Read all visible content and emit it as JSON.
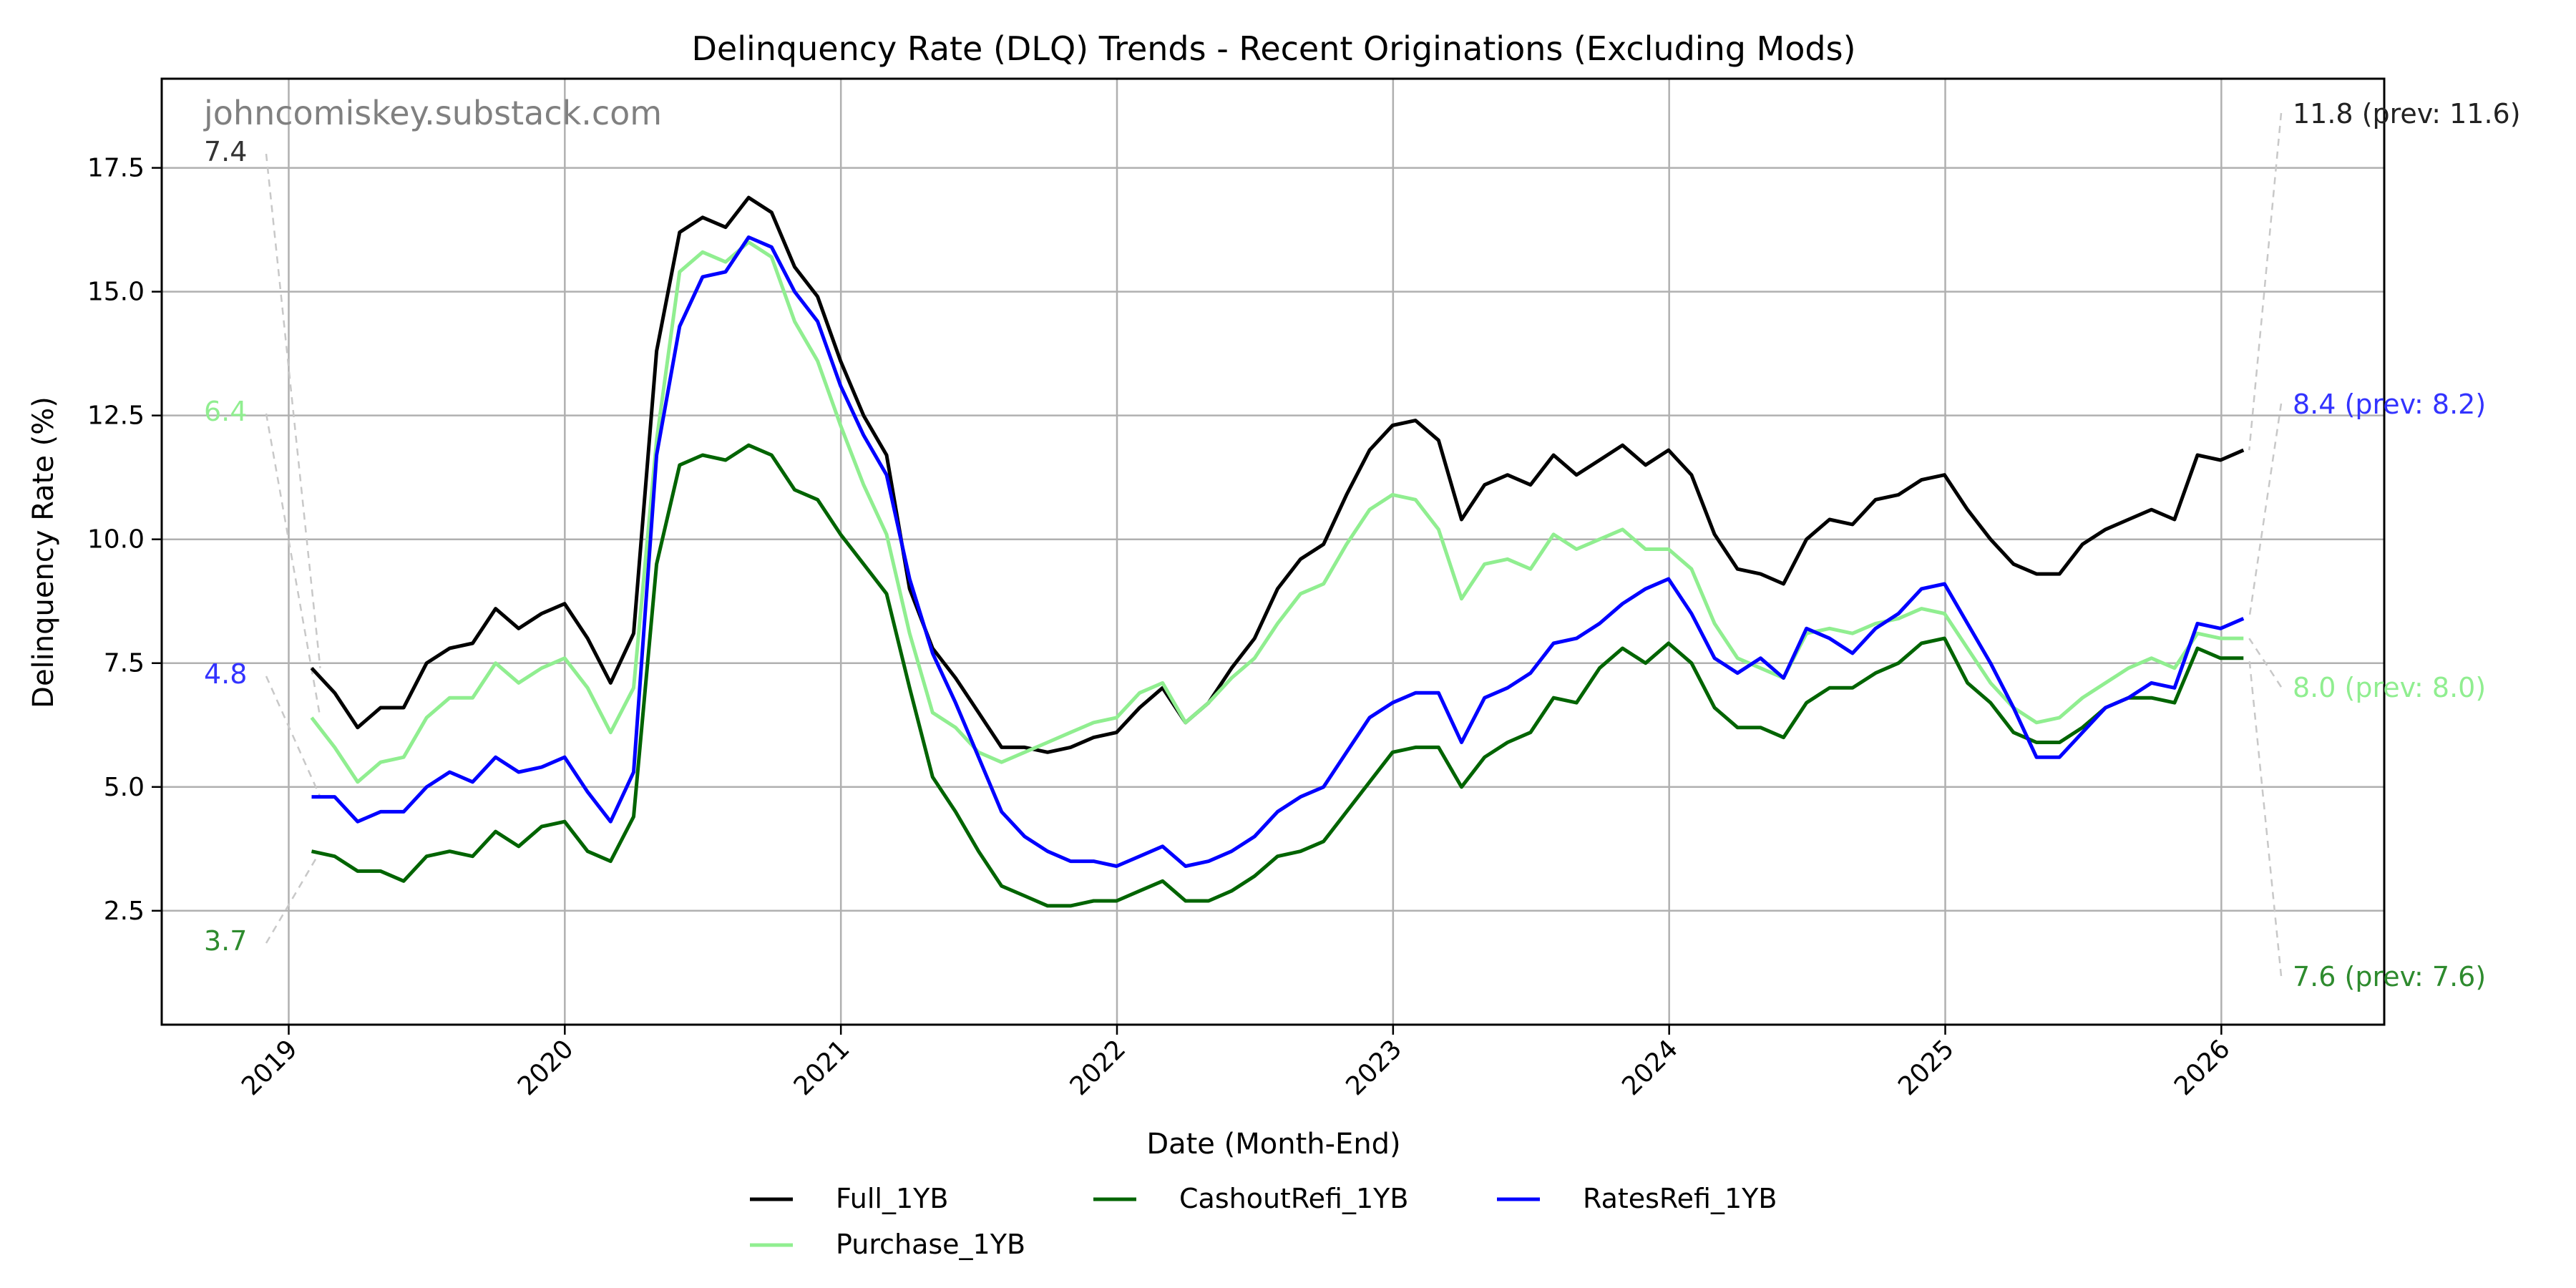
{
  "chart_data": {
    "type": "line",
    "title": "Delinquency Rate (DLQ) Trends - Recent Originations (Excluding Mods)",
    "xlabel": "Date (Month-End)",
    "ylabel": "Delinquency Rate (%)",
    "watermark": "johncomiskey.substack.com",
    "grid": true,
    "legend_position": "bottom-center",
    "ylim": [
      0.2,
      19.3
    ],
    "yticks": [
      2.5,
      5.0,
      7.5,
      10.0,
      12.5,
      15.0,
      17.5
    ],
    "ytick_labels": [
      "2.5",
      "5.0",
      "7.5",
      "10.0",
      "12.5",
      "15.0",
      "17.5"
    ],
    "xlim": [
      2018.54,
      2026.59
    ],
    "xticks": [
      2019,
      2020,
      2021,
      2022,
      2023,
      2024,
      2025,
      2026
    ],
    "xtick_labels": [
      "2019",
      "2020",
      "2021",
      "2022",
      "2023",
      "2024",
      "2025",
      "2026"
    ],
    "x_start": 2019.083,
    "x_step": 0.0833,
    "series": [
      {
        "name": "Full_1YB",
        "color": "#000000",
        "values": [
          7.4,
          6.9,
          6.2,
          6.6,
          6.6,
          7.5,
          7.8,
          7.9,
          8.6,
          8.2,
          8.5,
          8.7,
          8.0,
          7.1,
          8.1,
          13.8,
          16.2,
          16.5,
          16.3,
          16.9,
          16.6,
          15.5,
          14.9,
          13.6,
          12.5,
          11.7,
          9.0,
          7.8,
          7.2,
          6.5,
          5.8,
          5.8,
          5.7,
          5.8,
          6.0,
          6.1,
          6.6,
          7.0,
          6.3,
          6.7,
          7.4,
          8.0,
          9.0,
          9.6,
          9.9,
          10.9,
          11.8,
          12.3,
          12.4,
          12.0,
          10.4,
          11.1,
          11.3,
          11.1,
          11.7,
          11.3,
          11.6,
          11.9,
          11.5,
          11.8,
          11.3,
          10.1,
          9.4,
          9.3,
          9.1,
          10.0,
          10.4,
          10.3,
          10.8,
          10.9,
          11.2,
          11.3,
          10.6,
          10.0,
          9.5,
          9.3,
          9.3,
          9.9,
          10.2,
          10.4,
          10.6,
          10.4,
          11.7,
          11.6,
          11.8
        ]
      },
      {
        "name": "Purchase_1YB",
        "color": "#90ee90",
        "values": [
          6.4,
          5.8,
          5.1,
          5.5,
          5.6,
          6.4,
          6.8,
          6.8,
          7.5,
          7.1,
          7.4,
          7.6,
          7.0,
          6.1,
          7.0,
          12.0,
          15.4,
          15.8,
          15.6,
          16.0,
          15.7,
          14.4,
          13.6,
          12.3,
          11.1,
          10.1,
          8.1,
          6.5,
          6.2,
          5.7,
          5.5,
          5.7,
          5.9,
          6.1,
          6.3,
          6.4,
          6.9,
          7.1,
          6.3,
          6.7,
          7.2,
          7.6,
          8.3,
          8.9,
          9.1,
          9.9,
          10.6,
          10.9,
          10.8,
          10.2,
          8.8,
          9.5,
          9.6,
          9.4,
          10.1,
          9.8,
          10.0,
          10.2,
          9.8,
          9.8,
          9.4,
          8.3,
          7.6,
          7.4,
          7.2,
          8.1,
          8.2,
          8.1,
          8.3,
          8.4,
          8.6,
          8.5,
          7.8,
          7.1,
          6.6,
          6.3,
          6.4,
          6.8,
          7.1,
          7.4,
          7.6,
          7.4,
          8.1,
          8.0,
          8.0
        ]
      },
      {
        "name": "CashoutRefi_1YB",
        "color": "#006400",
        "values": [
          3.7,
          3.6,
          3.3,
          3.3,
          3.1,
          3.6,
          3.7,
          3.6,
          4.1,
          3.8,
          4.2,
          4.3,
          3.7,
          3.5,
          4.4,
          9.5,
          11.5,
          11.7,
          11.6,
          11.9,
          11.7,
          11.0,
          10.8,
          10.1,
          9.5,
          8.9,
          7.0,
          5.2,
          4.5,
          3.7,
          3.0,
          2.8,
          2.6,
          2.6,
          2.7,
          2.7,
          2.9,
          3.1,
          2.7,
          2.7,
          2.9,
          3.2,
          3.6,
          3.7,
          3.9,
          4.5,
          5.1,
          5.7,
          5.8,
          5.8,
          5.0,
          5.6,
          5.9,
          6.1,
          6.8,
          6.7,
          7.4,
          7.8,
          7.5,
          7.9,
          7.5,
          6.6,
          6.2,
          6.2,
          6.0,
          6.7,
          7.0,
          7.0,
          7.3,
          7.5,
          7.9,
          8.0,
          7.1,
          6.7,
          6.1,
          5.9,
          5.9,
          6.2,
          6.6,
          6.8,
          6.8,
          6.7,
          7.8,
          7.6,
          7.6
        ]
      },
      {
        "name": "RatesRefi_1YB",
        "color": "#0000ff",
        "values": [
          4.8,
          4.8,
          4.3,
          4.5,
          4.5,
          5.0,
          5.3,
          5.1,
          5.6,
          5.3,
          5.4,
          5.6,
          4.9,
          4.3,
          5.3,
          11.7,
          14.3,
          15.3,
          15.4,
          16.1,
          15.9,
          15.0,
          14.4,
          13.1,
          12.1,
          11.3,
          9.2,
          7.7,
          6.7,
          5.6,
          4.5,
          4.0,
          3.7,
          3.5,
          3.5,
          3.4,
          3.6,
          3.8,
          3.4,
          3.5,
          3.7,
          4.0,
          4.5,
          4.8,
          5.0,
          5.7,
          6.4,
          6.7,
          6.9,
          6.9,
          5.9,
          6.8,
          7.0,
          7.3,
          7.9,
          8.0,
          8.3,
          8.7,
          9.0,
          9.2,
          8.5,
          7.6,
          7.3,
          7.6,
          7.2,
          8.2,
          8.0,
          7.7,
          8.2,
          8.5,
          9.0,
          9.1,
          8.3,
          7.5,
          6.6,
          5.6,
          5.6,
          6.1,
          6.6,
          6.8,
          7.1,
          7.0,
          8.3,
          8.2,
          8.4
        ]
      }
    ],
    "annotations": {
      "left": [
        {
          "label": "7.4",
          "color": "#333333",
          "y": 7.4
        },
        {
          "label": "6.4",
          "color": "#90ee90",
          "y": 6.4
        },
        {
          "label": "4.8",
          "color": "#3333ff",
          "y": 4.8
        },
        {
          "label": "3.7",
          "color": "#2e8b2e",
          "y": 3.7
        }
      ],
      "right": [
        {
          "label": "11.8 (prev: 11.6)",
          "color": "#222222",
          "y": 11.8
        },
        {
          "label": "8.4 (prev: 8.2)",
          "color": "#3333ff",
          "y": 8.4
        },
        {
          "label": "8.0 (prev: 8.0)",
          "color": "#90ee90",
          "y": 8.0
        },
        {
          "label": "7.6 (prev: 7.6)",
          "color": "#2e8b2e",
          "y": 7.6
        }
      ]
    }
  }
}
